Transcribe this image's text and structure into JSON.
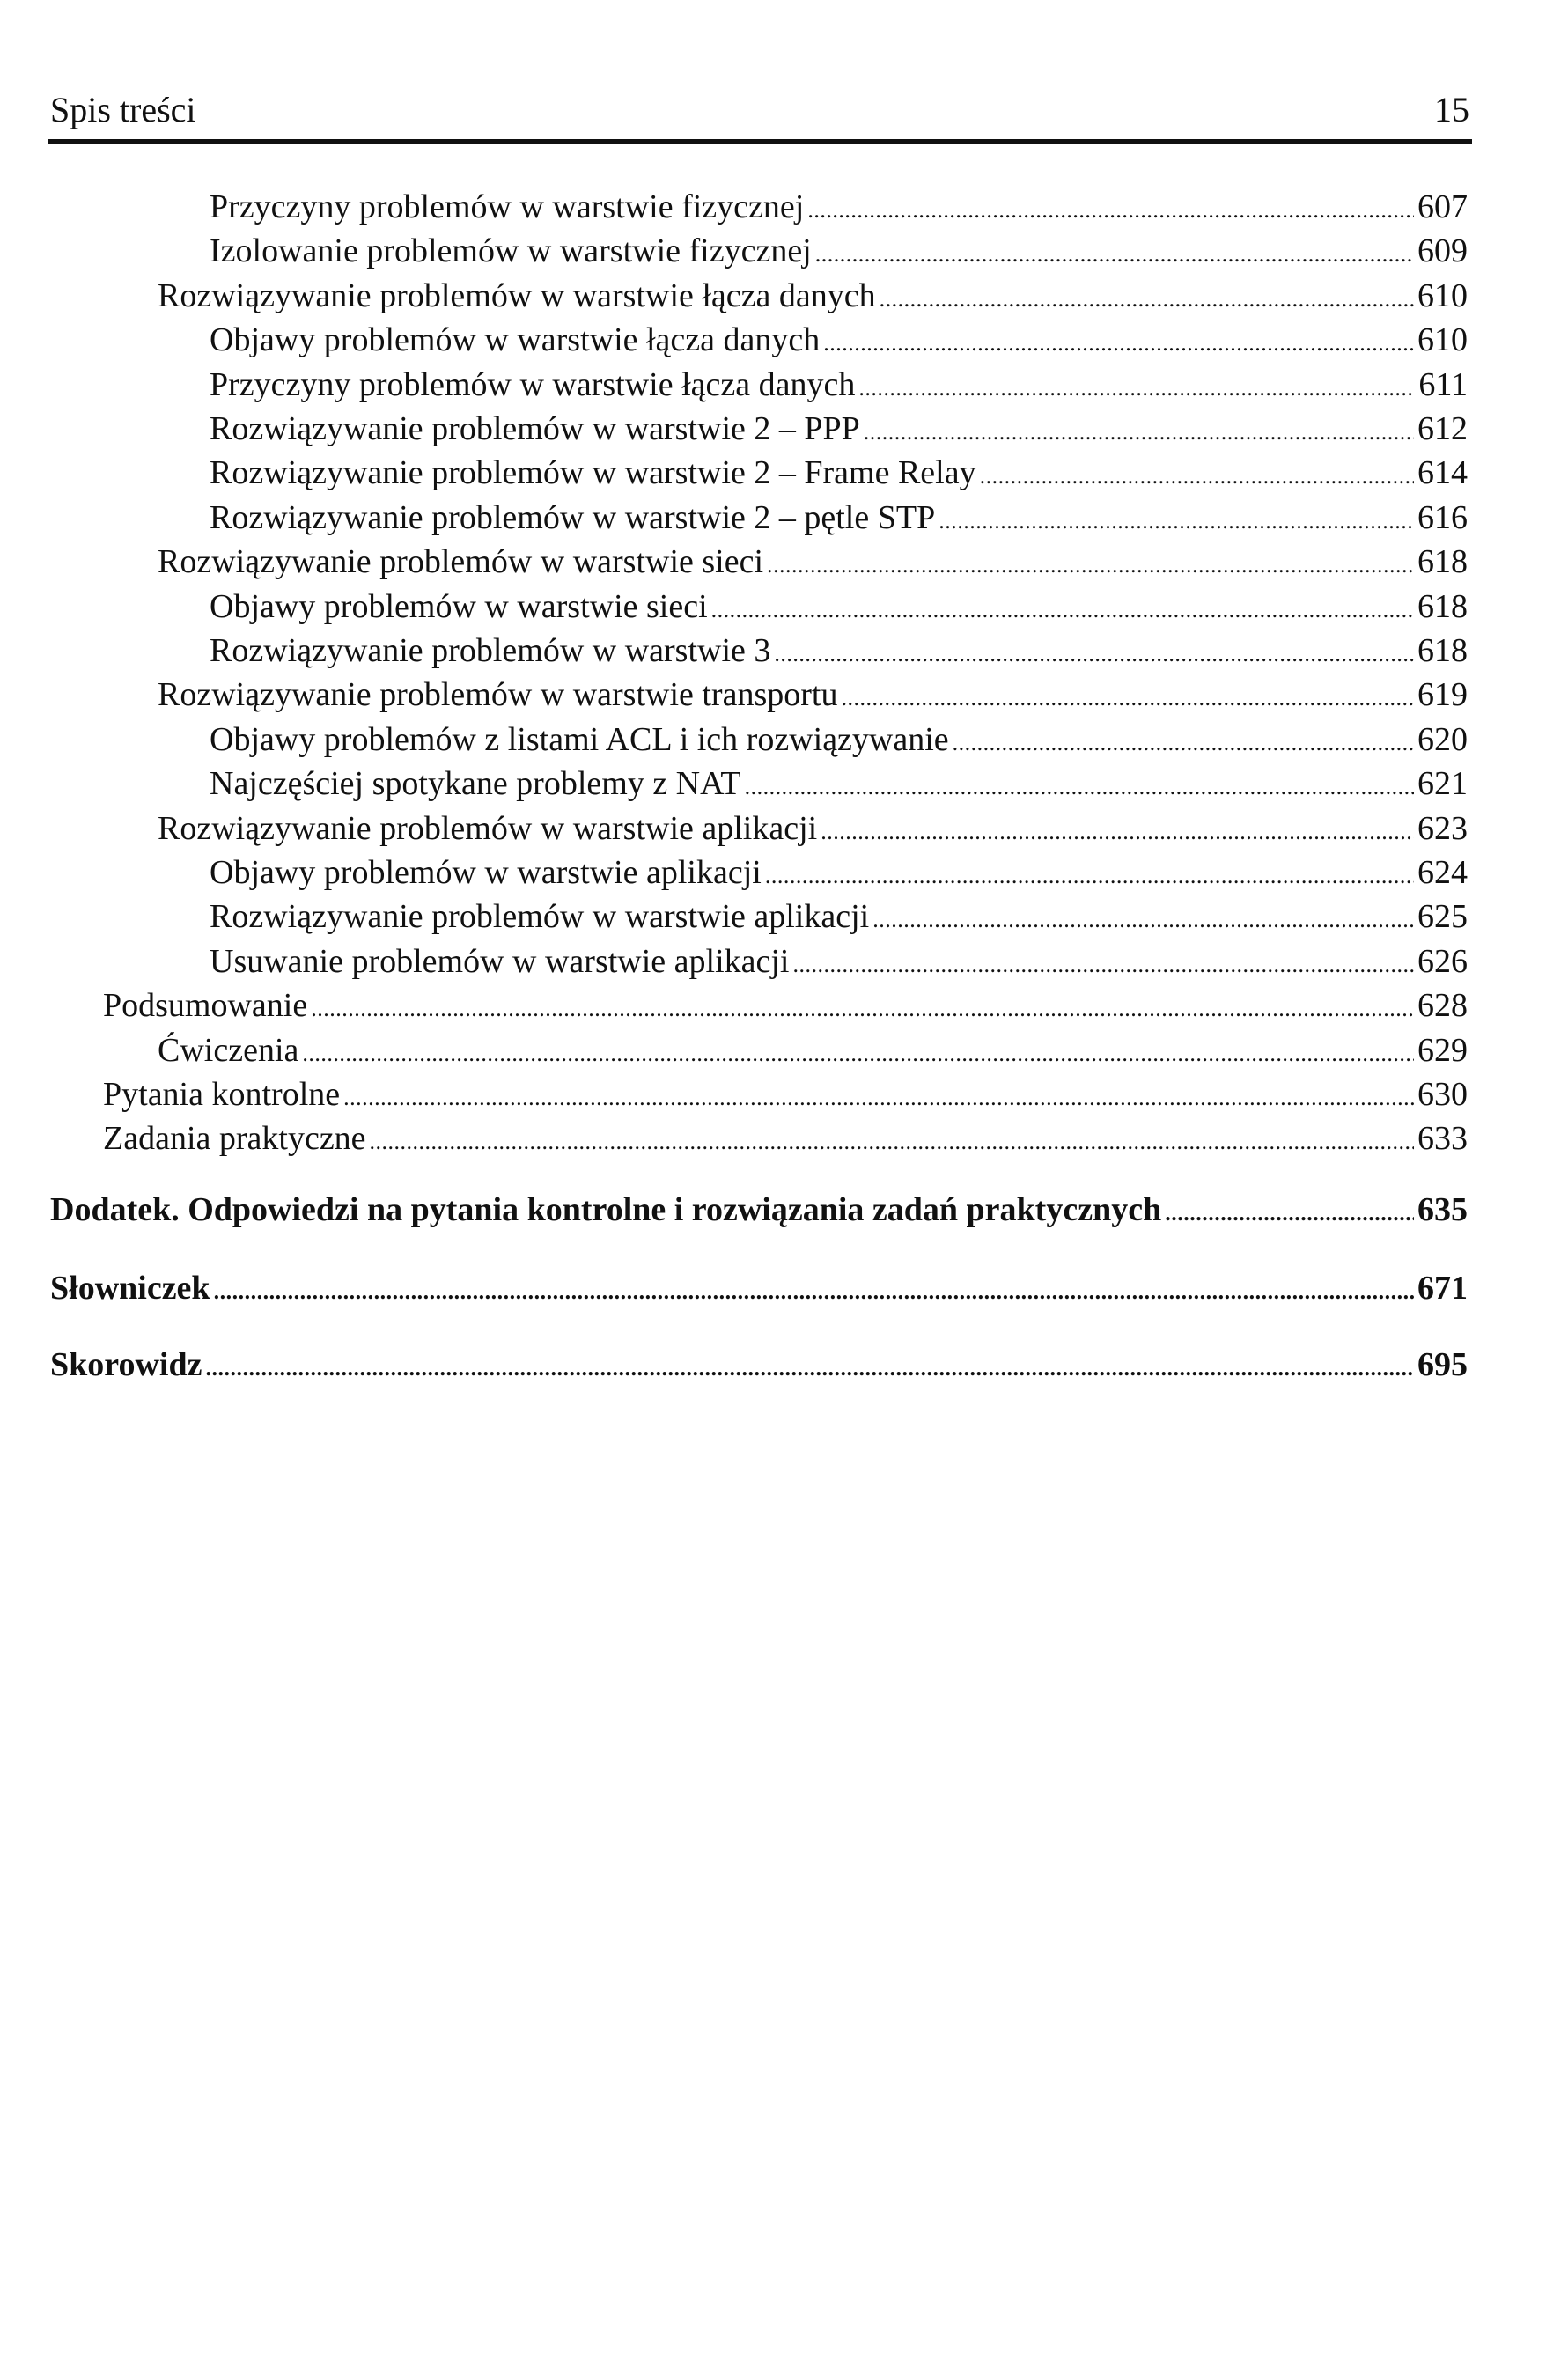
{
  "header": {
    "title": "Spis treści",
    "page_number": "15"
  },
  "entries": [
    {
      "text": "Przyczyny problemów w warstwie fizycznej",
      "page": "607",
      "level": 2
    },
    {
      "text": "Izolowanie problemów w warstwie fizycznej",
      "page": "609",
      "level": 2
    },
    {
      "text": "Rozwiązywanie problemów w warstwie łącza danych",
      "page": "610",
      "level": 1
    },
    {
      "text": "Objawy problemów w warstwie łącza danych",
      "page": "610",
      "level": 2
    },
    {
      "text": "Przyczyny problemów w warstwie łącza danych",
      "page": "611",
      "level": 2
    },
    {
      "text": "Rozwiązywanie problemów w warstwie 2 – PPP",
      "page": "612",
      "level": 2
    },
    {
      "text": "Rozwiązywanie problemów w warstwie 2 – Frame Relay",
      "page": "614",
      "level": 2
    },
    {
      "text": "Rozwiązywanie problemów w warstwie 2 – pętle STP",
      "page": "616",
      "level": 2
    },
    {
      "text": "Rozwiązywanie problemów w warstwie sieci",
      "page": "618",
      "level": 1
    },
    {
      "text": "Objawy problemów w warstwie sieci",
      "page": "618",
      "level": 2
    },
    {
      "text": "Rozwiązywanie problemów w warstwie 3",
      "page": "618",
      "level": 2
    },
    {
      "text": "Rozwiązywanie problemów w warstwie transportu",
      "page": "619",
      "level": 1
    },
    {
      "text": "Objawy problemów z listami ACL i ich rozwiązywanie",
      "page": "620",
      "level": 2
    },
    {
      "text": "Najczęściej spotykane problemy z NAT",
      "page": "621",
      "level": 2
    },
    {
      "text": "Rozwiązywanie problemów w warstwie aplikacji",
      "page": "623",
      "level": 1
    },
    {
      "text": "Objawy problemów w warstwie aplikacji",
      "page": "624",
      "level": 2
    },
    {
      "text": "Rozwiązywanie problemów w warstwie aplikacji",
      "page": "625",
      "level": 2
    },
    {
      "text": "Usuwanie problemów w warstwie aplikacji",
      "page": "626",
      "level": 2
    },
    {
      "text": "Podsumowanie",
      "page": "628",
      "level": 0
    },
    {
      "text": "Ćwiczenia",
      "page": "629",
      "level": 1
    },
    {
      "text": "Pytania kontrolne",
      "page": "630",
      "level": 0
    },
    {
      "text": "Zadania praktyczne",
      "page": "633",
      "level": 0
    }
  ],
  "chapters": [
    {
      "text": "Dodatek. Odpowiedzi na pytania kontrolne i rozwiązania zadań praktycznych",
      "page": "635"
    },
    {
      "text": "Słowniczek",
      "page": "671"
    },
    {
      "text": "Skorowidz",
      "page": "695"
    }
  ]
}
